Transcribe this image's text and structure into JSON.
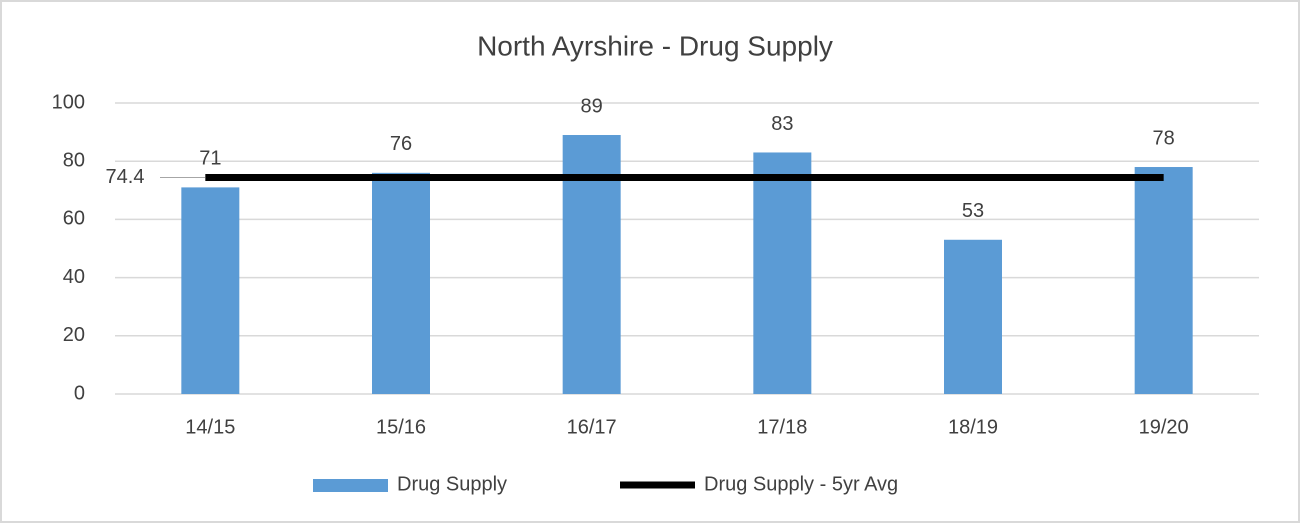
{
  "chart_data": {
    "type": "bar",
    "title": "North Ayrshire - Drug Supply",
    "categories": [
      "14/15",
      "15/16",
      "16/17",
      "17/18",
      "18/19",
      "19/20"
    ],
    "series": [
      {
        "name": "Drug Supply",
        "type": "bar",
        "color": "#5b9bd5",
        "values": [
          71,
          76,
          89,
          83,
          53,
          78
        ]
      },
      {
        "name": "Drug Supply - 5yr Avg",
        "type": "line",
        "color": "#000000",
        "values": [
          74.4,
          74.4,
          74.4,
          74.4,
          74.4,
          74.4
        ]
      }
    ],
    "ylim": [
      0,
      100
    ],
    "yticks": [
      0,
      20,
      40,
      60,
      80,
      100
    ],
    "grid": true,
    "legend": "bottom"
  }
}
